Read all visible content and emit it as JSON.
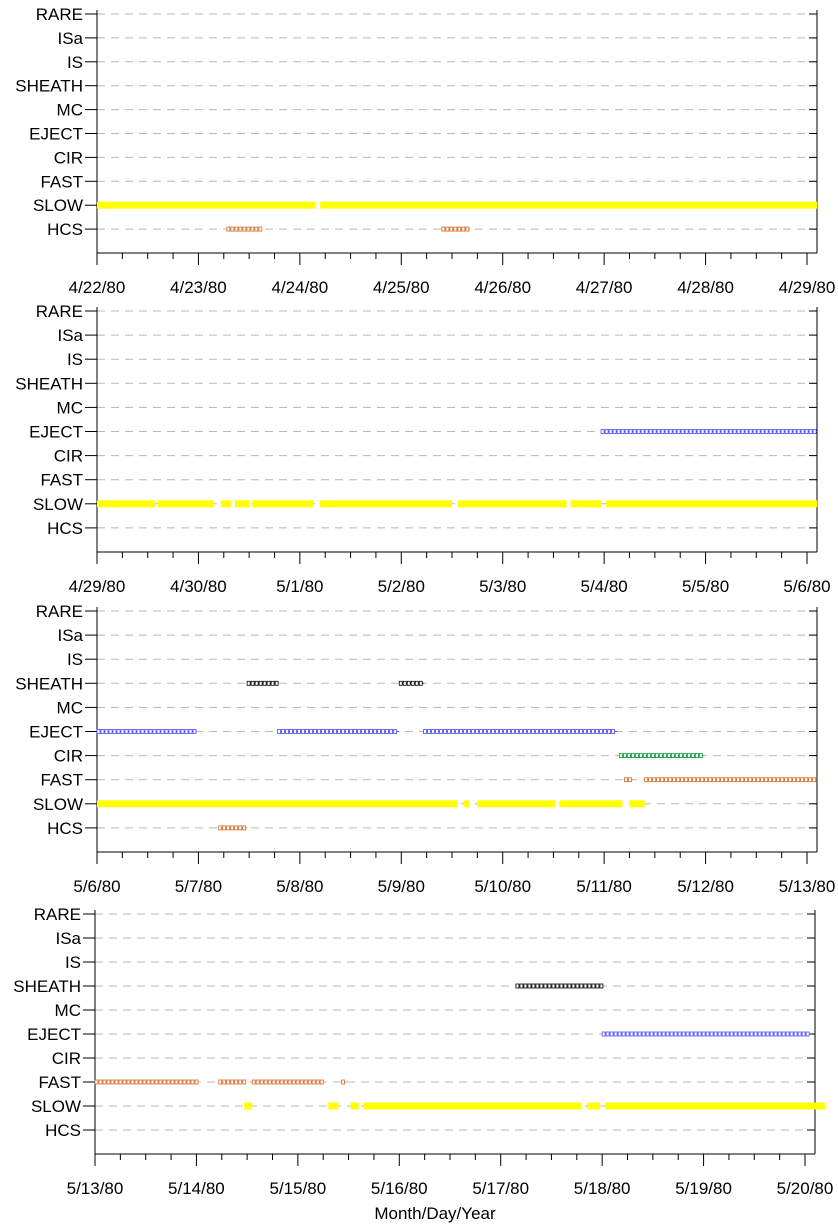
{
  "chart_data": {
    "type": "timeline",
    "xlabel": "Month/Day/Year",
    "categories": [
      "RARE",
      "ISa",
      "IS",
      "SHEATH",
      "MC",
      "EJECT",
      "CIR",
      "FAST",
      "SLOW",
      "HCS"
    ],
    "grid": true,
    "colors": {
      "SLOW": "#ffff00",
      "HCS": "#d2691e",
      "FAST": "#d2691e",
      "EJECT": "#4a4aff",
      "CIR": "#009933",
      "SHEATH": "#000000"
    },
    "panels": [
      {
        "x_tick_labels": [
          "4/22/80",
          "4/23/80",
          "4/24/80",
          "4/25/80",
          "4/26/80",
          "4/27/80",
          "4/28/80",
          "4/29/80"
        ],
        "x_range_days": [
          0,
          7
        ],
        "intervals": [
          {
            "category": "SLOW",
            "start": 0.0,
            "end": 2.15
          },
          {
            "category": "SLOW",
            "start": 2.2,
            "end": 7.1
          },
          {
            "category": "HCS",
            "start": 1.28,
            "end": 1.62
          },
          {
            "category": "HCS",
            "start": 3.4,
            "end": 3.68
          }
        ]
      },
      {
        "x_tick_labels": [
          "4/29/80",
          "4/30/80",
          "5/1/80",
          "5/2/80",
          "5/3/80",
          "5/4/80",
          "5/5/80",
          "5/6/80"
        ],
        "x_range_days": [
          0,
          7
        ],
        "intervals": [
          {
            "category": "SLOW",
            "start": 0.0,
            "end": 0.57
          },
          {
            "category": "SLOW",
            "start": 0.6,
            "end": 1.15
          },
          {
            "category": "SLOW",
            "start": 1.22,
            "end": 1.32
          },
          {
            "category": "SLOW",
            "start": 1.36,
            "end": 1.5
          },
          {
            "category": "SLOW",
            "start": 1.53,
            "end": 2.13
          },
          {
            "category": "SLOW",
            "start": 2.2,
            "end": 3.5
          },
          {
            "category": "SLOW",
            "start": 3.56,
            "end": 4.63
          },
          {
            "category": "SLOW",
            "start": 4.67,
            "end": 4.97
          },
          {
            "category": "SLOW",
            "start": 5.02,
            "end": 7.1
          },
          {
            "category": "EJECT",
            "start": 4.97,
            "end": 7.1
          }
        ]
      },
      {
        "x_tick_labels": [
          "5/6/80",
          "5/7/80",
          "5/8/80",
          "5/9/80",
          "5/10/80",
          "5/11/80",
          "5/12/80",
          "5/13/80"
        ],
        "x_range_days": [
          0,
          7
        ],
        "intervals": [
          {
            "category": "SLOW",
            "start": 0.0,
            "end": 3.55
          },
          {
            "category": "SLOW",
            "start": 3.62,
            "end": 3.67
          },
          {
            "category": "SLOW",
            "start": 3.75,
            "end": 4.52
          },
          {
            "category": "SLOW",
            "start": 4.56,
            "end": 5.18
          },
          {
            "category": "SLOW",
            "start": 5.25,
            "end": 5.4
          },
          {
            "category": "HCS",
            "start": 1.2,
            "end": 1.48
          },
          {
            "category": "EJECT",
            "start": 0.0,
            "end": 0.98
          },
          {
            "category": "EJECT",
            "start": 1.78,
            "end": 2.98
          },
          {
            "category": "EJECT",
            "start": 3.22,
            "end": 5.13
          },
          {
            "category": "SHEATH",
            "start": 1.48,
            "end": 1.78
          },
          {
            "category": "SHEATH",
            "start": 2.98,
            "end": 3.22
          },
          {
            "category": "CIR",
            "start": 5.15,
            "end": 5.98
          },
          {
            "category": "FAST",
            "start": 5.2,
            "end": 5.28
          },
          {
            "category": "FAST",
            "start": 5.4,
            "end": 7.1
          }
        ]
      },
      {
        "x_tick_labels": [
          "5/13/80",
          "5/14/80",
          "5/15/80",
          "5/16/80",
          "5/17/80",
          "5/18/80",
          "5/19/80",
          "5/20/80"
        ],
        "x_range_days": [
          0,
          7
        ],
        "intervals": [
          {
            "category": "FAST",
            "start": 0.0,
            "end": 1.02
          },
          {
            "category": "FAST",
            "start": 1.22,
            "end": 1.48
          },
          {
            "category": "FAST",
            "start": 1.55,
            "end": 2.25
          },
          {
            "category": "FAST",
            "start": 2.43,
            "end": 2.48
          },
          {
            "category": "SLOW",
            "start": 1.47,
            "end": 1.55
          },
          {
            "category": "SLOW",
            "start": 2.3,
            "end": 2.4
          },
          {
            "category": "SLOW",
            "start": 2.52,
            "end": 2.6
          },
          {
            "category": "SLOW",
            "start": 2.65,
            "end": 4.8
          },
          {
            "category": "SLOW",
            "start": 4.85,
            "end": 4.98
          },
          {
            "category": "SLOW",
            "start": 5.03,
            "end": 7.2
          },
          {
            "category": "SHEATH",
            "start": 4.15,
            "end": 5.0
          },
          {
            "category": "EJECT",
            "start": 5.0,
            "end": 7.05
          }
        ]
      }
    ]
  }
}
